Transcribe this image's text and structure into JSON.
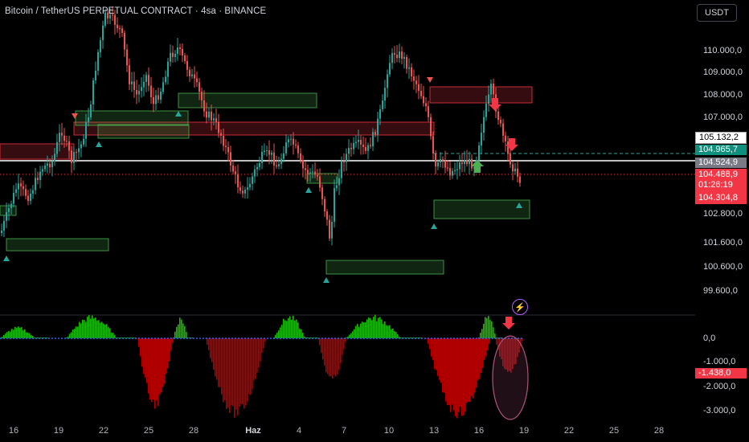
{
  "header": {
    "title": "Bitcoin / TetherUS PERPETUAL CONTRACT · 4sa · BINANCE",
    "currency_button": "USDT"
  },
  "price_axis": [
    "110.000,0",
    "109.000,0",
    "108.000,0",
    "107.000,0",
    "102.800,0",
    "101.600,0",
    "100.600,0",
    "99.600,0"
  ],
  "price_tags": {
    "high_marker": "105.132,2",
    "bid": "104.965,7",
    "reference": "104.524,9",
    "last_price": "104.488,9",
    "countdown": "01:26:19",
    "low_marker": "104.304,8"
  },
  "indicator_axis": [
    "0,0",
    "-1.000,0",
    "-2.000,0",
    "-3.000,0"
  ],
  "indicator_value": "-1.438,0",
  "time_axis": [
    "16",
    "19",
    "22",
    "25",
    "28",
    "Haz",
    "4",
    "7",
    "10",
    "13",
    "16",
    "19",
    "22",
    "25",
    "28"
  ],
  "icons": {
    "alert": "bolt-icon"
  },
  "colors": {
    "up": "#26a69a",
    "down": "#ef5350",
    "zone_supply": "#f23645",
    "zone_demand": "#4caf50",
    "hist_pos": "#1fb800",
    "hist_neg": "#b20000",
    "ellipse": "#b0537a"
  }
}
